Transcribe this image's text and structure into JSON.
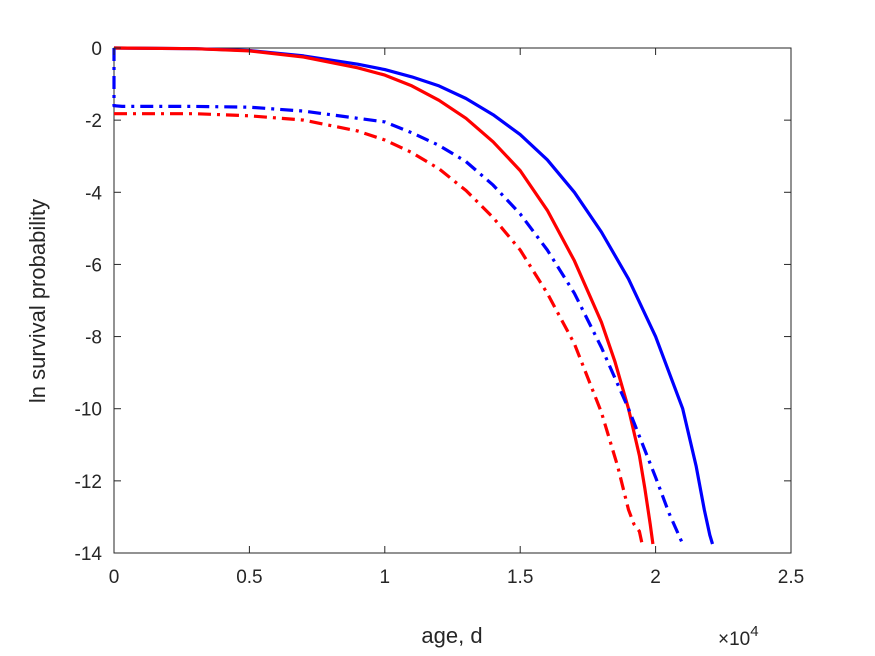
{
  "chart_data": {
    "type": "line",
    "title": "",
    "xlabel": "age, d",
    "ylabel": "ln survival probability",
    "xlim": [
      0,
      2.5
    ],
    "ylim": [
      -14,
      0
    ],
    "x_multiplier_label": "×10",
    "x_multiplier_exp": "4",
    "xticks": [
      0,
      0.5,
      1,
      1.5,
      2,
      2.5
    ],
    "xtick_labels": [
      "0",
      "0.5",
      "1",
      "1.5",
      "2",
      "2.5"
    ],
    "yticks": [
      0,
      -2,
      -4,
      -6,
      -8,
      -10,
      -12,
      -14
    ],
    "ytick_labels": [
      "0",
      "-2",
      "-4",
      "-6",
      "-8",
      "-10",
      "-12",
      "-14"
    ],
    "grid": false,
    "legend": "none",
    "series": [
      {
        "color": "#0000ff",
        "style": "solid",
        "points": [
          [
            0,
            0
          ],
          [
            0.3,
            -0.02
          ],
          [
            0.5,
            -0.07
          ],
          [
            0.7,
            -0.22
          ],
          [
            0.9,
            -0.45
          ],
          [
            1.0,
            -0.6
          ],
          [
            1.1,
            -0.8
          ],
          [
            1.2,
            -1.05
          ],
          [
            1.3,
            -1.4
          ],
          [
            1.4,
            -1.85
          ],
          [
            1.5,
            -2.4
          ],
          [
            1.6,
            -3.1
          ],
          [
            1.7,
            -4.0
          ],
          [
            1.8,
            -5.1
          ],
          [
            1.9,
            -6.4
          ],
          [
            2.0,
            -8.0
          ],
          [
            2.1,
            -10.0
          ],
          [
            2.15,
            -11.6
          ],
          [
            2.18,
            -12.8
          ],
          [
            2.2,
            -13.5
          ],
          [
            2.21,
            -13.75
          ]
        ]
      },
      {
        "color": "#ff0000",
        "style": "solid",
        "points": [
          [
            0,
            0
          ],
          [
            0.3,
            -0.02
          ],
          [
            0.5,
            -0.08
          ],
          [
            0.7,
            -0.25
          ],
          [
            0.9,
            -0.55
          ],
          [
            1.0,
            -0.75
          ],
          [
            1.1,
            -1.05
          ],
          [
            1.2,
            -1.45
          ],
          [
            1.3,
            -1.95
          ],
          [
            1.4,
            -2.6
          ],
          [
            1.5,
            -3.4
          ],
          [
            1.6,
            -4.5
          ],
          [
            1.7,
            -5.9
          ],
          [
            1.8,
            -7.6
          ],
          [
            1.85,
            -8.7
          ],
          [
            1.9,
            -10.0
          ],
          [
            1.94,
            -11.3
          ],
          [
            1.96,
            -12.2
          ],
          [
            1.98,
            -13.2
          ],
          [
            1.99,
            -13.75
          ]
        ]
      },
      {
        "color": "#0000ff",
        "style": "dashdot",
        "points": [
          [
            0,
            0
          ],
          [
            0,
            -1.6
          ],
          [
            0.03,
            -1.62
          ],
          [
            0.3,
            -1.62
          ],
          [
            0.5,
            -1.64
          ],
          [
            0.7,
            -1.75
          ],
          [
            0.9,
            -1.95
          ],
          [
            1.0,
            -2.05
          ],
          [
            1.1,
            -2.35
          ],
          [
            1.2,
            -2.7
          ],
          [
            1.3,
            -3.15
          ],
          [
            1.4,
            -3.8
          ],
          [
            1.5,
            -4.6
          ],
          [
            1.6,
            -5.6
          ],
          [
            1.7,
            -6.8
          ],
          [
            1.8,
            -8.3
          ],
          [
            1.9,
            -10.0
          ],
          [
            2.0,
            -11.9
          ],
          [
            2.05,
            -12.9
          ],
          [
            2.1,
            -13.75
          ]
        ]
      },
      {
        "color": "#ff0000",
        "style": "dashdot",
        "points": [
          [
            0,
            -1.82
          ],
          [
            0.3,
            -1.82
          ],
          [
            0.5,
            -1.88
          ],
          [
            0.7,
            -2.0
          ],
          [
            0.9,
            -2.3
          ],
          [
            1.0,
            -2.55
          ],
          [
            1.1,
            -2.9
          ],
          [
            1.2,
            -3.35
          ],
          [
            1.3,
            -3.95
          ],
          [
            1.4,
            -4.7
          ],
          [
            1.5,
            -5.6
          ],
          [
            1.6,
            -6.8
          ],
          [
            1.7,
            -8.2
          ],
          [
            1.8,
            -10.1
          ],
          [
            1.86,
            -11.6
          ],
          [
            1.9,
            -12.8
          ],
          [
            1.92,
            -13.2
          ],
          [
            1.94,
            -13.4
          ],
          [
            1.95,
            -13.75
          ]
        ]
      }
    ]
  }
}
